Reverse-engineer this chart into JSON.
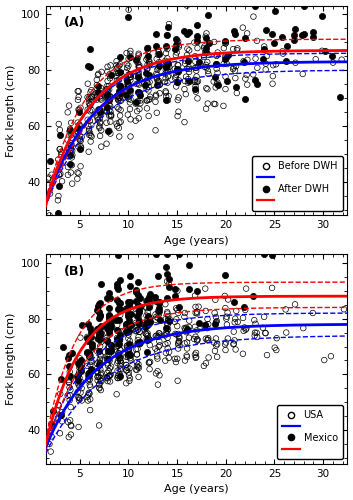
{
  "panel_A_label": "(A)",
  "panel_B_label": "(B)",
  "ylabel": "Fork length (cm)",
  "xlabel": "Age (years)",
  "xlim": [
    1.5,
    32.5
  ],
  "ylim": [
    28,
    103
  ],
  "xticks": [
    5,
    10,
    15,
    20,
    25,
    30
  ],
  "yticks": [
    40,
    60,
    80,
    100
  ],
  "vb_A_blue": {
    "Linf": 83.0,
    "K": 0.2,
    "t0": -1.0
  },
  "vb_A_blue_lo": {
    "Linf": 80.0,
    "K": 0.185,
    "t0": -1.2
  },
  "vb_A_blue_hi": {
    "Linf": 86.0,
    "K": 0.215,
    "t0": -0.8
  },
  "vb_A_red": {
    "Linf": 87.0,
    "K": 0.22,
    "t0": -0.6
  },
  "vb_A_red_lo": {
    "Linf": 83.0,
    "K": 0.2,
    "t0": -0.8
  },
  "vb_A_red_hi": {
    "Linf": 91.0,
    "K": 0.24,
    "t0": -0.4
  },
  "vb_B_blue": {
    "Linf": 78.0,
    "K": 0.19,
    "t0": -1.5
  },
  "vb_B_blue_lo": {
    "Linf": 74.0,
    "K": 0.165,
    "t0": -1.9
  },
  "vb_B_blue_hi": {
    "Linf": 82.0,
    "K": 0.215,
    "t0": -1.1
  },
  "vb_B_red": {
    "Linf": 88.0,
    "K": 0.28,
    "t0": -0.3
  },
  "vb_B_red_lo": {
    "Linf": 84.0,
    "K": 0.24,
    "t0": -0.55
  },
  "vb_B_red_hi": {
    "Linf": 93.0,
    "K": 0.32,
    "t0": -0.05
  },
  "blue_color": "#0000FF",
  "red_color": "#FF0000",
  "marker_size_open": 16,
  "marker_size_filled": 20,
  "lw_main": 2.0,
  "lw_ci": 1.0,
  "legend_A_open": "Before DWH",
  "legend_A_filled": "After DWH",
  "legend_B_open": "USA",
  "legend_B_filled": "Mexico",
  "n_A_open_ages": [
    2,
    2,
    2,
    2,
    2,
    3,
    3,
    3,
    3,
    3,
    3,
    3,
    3,
    3,
    3,
    3,
    3,
    3,
    3,
    3,
    4,
    4,
    4,
    4,
    4,
    4,
    4,
    4,
    4,
    4,
    4,
    4,
    4,
    4,
    4,
    4,
    4,
    4,
    4,
    4,
    4,
    4,
    5,
    5,
    5,
    5,
    5,
    5,
    5,
    5,
    5,
    5,
    5,
    5,
    5,
    5,
    5,
    5,
    5,
    5,
    5,
    5,
    5,
    5,
    5,
    5,
    5,
    6,
    6,
    6,
    6,
    6,
    6,
    6,
    6,
    6,
    6,
    6,
    6,
    6,
    6,
    6,
    6,
    6,
    6,
    6,
    6,
    6,
    6,
    6,
    6,
    6,
    6,
    6,
    6,
    7,
    7,
    7,
    7,
    7,
    7,
    7,
    7,
    7,
    7,
    7,
    7,
    7,
    7,
    7,
    7,
    7,
    7,
    7,
    7,
    7,
    7,
    7,
    7,
    7,
    7,
    7,
    7,
    7,
    7,
    7,
    7,
    7,
    8,
    8,
    8,
    8,
    8,
    8,
    8,
    8,
    8,
    8,
    8,
    8,
    8,
    8,
    8,
    8,
    8,
    8,
    8,
    8,
    8,
    8,
    8,
    8,
    8,
    8,
    8,
    8,
    8,
    8,
    8,
    8,
    8,
    8,
    8,
    8,
    9,
    9,
    9,
    9,
    9,
    9,
    9,
    9,
    9,
    9,
    9,
    9,
    9,
    9,
    9,
    9,
    9,
    9,
    9,
    9,
    9,
    9,
    9,
    9,
    9,
    9,
    9,
    9,
    9,
    9,
    9,
    9,
    9,
    9,
    9,
    10,
    10,
    10,
    10,
    10,
    10,
    10,
    10,
    10,
    10,
    10,
    10,
    10,
    10,
    10,
    10,
    10,
    10,
    10,
    10,
    10,
    10,
    10,
    10,
    10,
    10,
    10,
    10,
    10,
    10,
    10,
    10,
    10,
    10,
    10,
    10,
    11,
    11,
    11,
    11,
    11,
    11,
    11,
    11,
    11,
    11,
    11,
    11,
    11,
    11,
    11,
    11,
    11,
    11,
    11,
    11,
    11,
    11,
    11,
    11,
    11,
    11,
    11,
    11,
    11,
    12,
    12,
    12,
    12,
    12,
    12,
    12,
    12,
    12,
    12,
    12,
    12,
    12,
    12,
    12,
    12,
    12,
    12,
    12,
    12,
    12,
    12,
    12,
    12,
    12,
    13,
    13,
    13,
    13,
    13,
    13,
    13,
    13,
    13,
    13,
    13,
    13,
    13,
    13,
    13,
    13,
    13,
    13,
    13,
    13,
    13,
    13,
    14,
    14,
    14,
    14,
    14,
    14,
    14,
    14,
    14,
    14,
    14,
    14,
    14,
    14,
    14,
    14,
    14,
    14,
    14,
    14,
    14,
    14,
    14,
    14,
    14,
    15,
    15,
    15,
    15,
    15,
    15,
    15,
    15,
    15,
    15,
    15,
    15,
    15,
    15,
    15,
    15,
    15,
    15,
    15,
    15,
    15,
    15,
    16,
    16,
    16,
    16,
    16,
    16,
    16,
    16,
    16,
    16,
    16,
    16,
    16,
    16,
    16,
    16,
    16,
    17,
    17,
    17,
    17,
    17,
    17,
    17,
    17,
    17,
    17,
    17,
    17,
    17,
    17,
    17,
    17,
    17,
    17,
    17,
    18,
    18,
    18,
    18,
    18,
    18,
    18,
    18,
    18,
    18,
    18,
    18,
    18,
    18,
    18,
    18,
    18,
    19,
    19,
    19,
    19,
    19,
    19,
    19,
    19,
    19,
    19,
    19,
    19,
    20,
    20,
    20,
    20,
    20,
    20,
    20,
    20,
    20,
    20,
    21,
    21,
    21,
    21,
    21,
    21,
    21,
    21,
    21,
    22,
    22,
    22,
    22,
    22,
    22,
    22,
    23,
    23,
    23,
    23,
    23,
    24,
    24,
    24,
    24,
    25,
    25,
    25,
    25,
    26,
    26,
    27,
    28,
    29,
    30,
    31,
    32
  ],
  "n_A_filled_ages": [
    2,
    3,
    3,
    4,
    4,
    5,
    5,
    6,
    6,
    7,
    7,
    7,
    8,
    8,
    8,
    9,
    9,
    9,
    10,
    10,
    10,
    11,
    11,
    11,
    12,
    12,
    12,
    13,
    13,
    13,
    14,
    14,
    14,
    15,
    15,
    15,
    16,
    16,
    17,
    17,
    18,
    18,
    19,
    20,
    21,
    22,
    23,
    24,
    25,
    26,
    27,
    28,
    29,
    30,
    31,
    32,
    14,
    15,
    16,
    17,
    18,
    19,
    20,
    21,
    22,
    23,
    24,
    25,
    26,
    27,
    28,
    29,
    30,
    8,
    9,
    10,
    11,
    12,
    13,
    14,
    15,
    16,
    17,
    18,
    19,
    20,
    21,
    22,
    23,
    24,
    25,
    26,
    27,
    28,
    3,
    4,
    5,
    6,
    7,
    8,
    9,
    10,
    11,
    12,
    13,
    14,
    15,
    16,
    17,
    18,
    19,
    20
  ],
  "n_B_open_ages": [
    2,
    2,
    2,
    3,
    3,
    3,
    3,
    3,
    3,
    3,
    3,
    4,
    4,
    4,
    4,
    4,
    4,
    4,
    4,
    4,
    4,
    4,
    4,
    4,
    4,
    4,
    4,
    5,
    5,
    5,
    5,
    5,
    5,
    5,
    5,
    5,
    5,
    5,
    5,
    5,
    5,
    5,
    5,
    5,
    5,
    5,
    5,
    5,
    5,
    5,
    6,
    6,
    6,
    6,
    6,
    6,
    6,
    6,
    6,
    6,
    6,
    6,
    6,
    6,
    6,
    6,
    6,
    6,
    6,
    6,
    6,
    6,
    6,
    6,
    6,
    6,
    6,
    7,
    7,
    7,
    7,
    7,
    7,
    7,
    7,
    7,
    7,
    7,
    7,
    7,
    7,
    7,
    7,
    7,
    7,
    7,
    7,
    7,
    7,
    7,
    7,
    7,
    7,
    7,
    7,
    7,
    7,
    7,
    7,
    7,
    8,
    8,
    8,
    8,
    8,
    8,
    8,
    8,
    8,
    8,
    8,
    8,
    8,
    8,
    8,
    8,
    8,
    8,
    8,
    8,
    8,
    8,
    8,
    8,
    8,
    8,
    8,
    8,
    8,
    8,
    8,
    8,
    8,
    8,
    9,
    9,
    9,
    9,
    9,
    9,
    9,
    9,
    9,
    9,
    9,
    9,
    9,
    9,
    9,
    9,
    9,
    9,
    9,
    9,
    9,
    9,
    9,
    9,
    9,
    9,
    9,
    9,
    9,
    9,
    9,
    9,
    9,
    9,
    9,
    10,
    10,
    10,
    10,
    10,
    10,
    10,
    10,
    10,
    10,
    10,
    10,
    10,
    10,
    10,
    10,
    10,
    10,
    10,
    10,
    10,
    10,
    10,
    10,
    10,
    10,
    10,
    10,
    10,
    10,
    10,
    10,
    10,
    10,
    10,
    10,
    11,
    11,
    11,
    11,
    11,
    11,
    11,
    11,
    11,
    11,
    11,
    11,
    11,
    11,
    11,
    11,
    11,
    11,
    11,
    11,
    11,
    11,
    11,
    11,
    11,
    11,
    11,
    11,
    11,
    11,
    12,
    12,
    12,
    12,
    12,
    12,
    12,
    12,
    12,
    12,
    12,
    12,
    12,
    12,
    12,
    12,
    12,
    12,
    12,
    12,
    12,
    12,
    12,
    12,
    12,
    12,
    12,
    12,
    13,
    13,
    13,
    13,
    13,
    13,
    13,
    13,
    13,
    13,
    13,
    13,
    13,
    13,
    13,
    13,
    13,
    13,
    13,
    13,
    13,
    13,
    13,
    13,
    14,
    14,
    14,
    14,
    14,
    14,
    14,
    14,
    14,
    14,
    14,
    14,
    14,
    14,
    14,
    14,
    14,
    14,
    14,
    14,
    14,
    14,
    14,
    14,
    14,
    15,
    15,
    15,
    15,
    15,
    15,
    15,
    15,
    15,
    15,
    15,
    15,
    15,
    15,
    15,
    15,
    15,
    15,
    15,
    15,
    15,
    16,
    16,
    16,
    16,
    16,
    16,
    16,
    16,
    16,
    16,
    16,
    16,
    16,
    16,
    16,
    16,
    16,
    16,
    17,
    17,
    17,
    17,
    17,
    17,
    17,
    17,
    17,
    17,
    17,
    17,
    17,
    17,
    17,
    17,
    17,
    18,
    18,
    18,
    18,
    18,
    18,
    18,
    18,
    18,
    18,
    18,
    18,
    18,
    18,
    19,
    19,
    19,
    19,
    19,
    19,
    19,
    19,
    19,
    19,
    19,
    19,
    20,
    20,
    20,
    20,
    20,
    20,
    20,
    20,
    20,
    20,
    20,
    21,
    21,
    21,
    21,
    21,
    21,
    21,
    21,
    21,
    22,
    22,
    22,
    22,
    22,
    22,
    22,
    22,
    23,
    23,
    23,
    23,
    23,
    23,
    24,
    24,
    24,
    24,
    24,
    25,
    25,
    25,
    25,
    26,
    26,
    27,
    28,
    29,
    30,
    31,
    32
  ],
  "n_B_filled_ages": [
    2,
    2,
    3,
    3,
    3,
    4,
    4,
    4,
    4,
    4,
    5,
    5,
    5,
    5,
    5,
    5,
    5,
    6,
    6,
    6,
    6,
    6,
    6,
    6,
    6,
    6,
    6,
    6,
    6,
    6,
    7,
    7,
    7,
    7,
    7,
    7,
    7,
    7,
    7,
    7,
    7,
    7,
    7,
    7,
    7,
    7,
    7,
    7,
    7,
    7,
    7,
    7,
    8,
    8,
    8,
    8,
    8,
    8,
    8,
    8,
    8,
    8,
    8,
    8,
    8,
    8,
    8,
    8,
    8,
    8,
    8,
    8,
    8,
    8,
    9,
    9,
    9,
    9,
    9,
    9,
    9,
    9,
    9,
    9,
    9,
    9,
    9,
    9,
    9,
    9,
    9,
    9,
    9,
    9,
    9,
    9,
    9,
    9,
    10,
    10,
    10,
    10,
    10,
    10,
    10,
    10,
    10,
    10,
    10,
    10,
    10,
    10,
    10,
    10,
    10,
    10,
    10,
    10,
    11,
    11,
    11,
    11,
    11,
    11,
    11,
    11,
    11,
    11,
    11,
    11,
    11,
    11,
    11,
    12,
    12,
    12,
    12,
    12,
    12,
    12,
    12,
    12,
    12,
    12,
    12,
    12,
    12,
    12,
    13,
    13,
    13,
    13,
    13,
    13,
    13,
    13,
    13,
    13,
    14,
    14,
    14,
    14,
    14,
    14,
    14,
    14,
    15,
    15,
    15,
    15,
    16,
    16,
    16,
    17,
    17,
    18,
    19,
    20,
    21,
    22,
    23,
    24,
    25
  ]
}
